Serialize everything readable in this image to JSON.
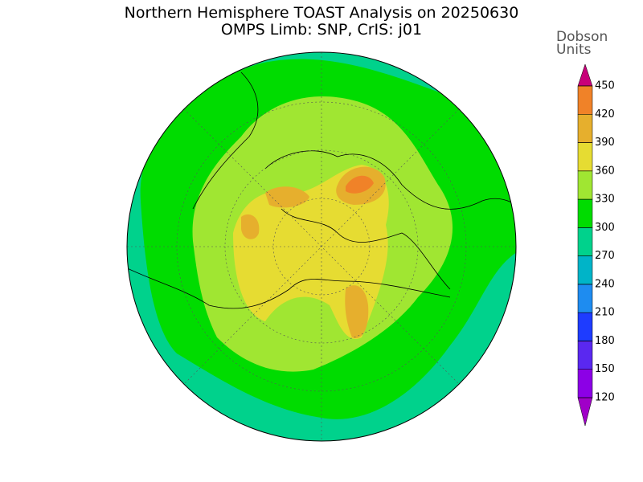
{
  "title": [
    "Northern Hemisphere TOAST Analysis on 20250630",
    "OMPS Limb: SNP, CrIS: j01"
  ],
  "colorbar": {
    "title": [
      "Dobson",
      "Units"
    ],
    "ticks": [
      120,
      150,
      180,
      210,
      240,
      270,
      300,
      330,
      360,
      390,
      420,
      450
    ],
    "colors": [
      "#a000c8",
      "#8c00e6",
      "#5a28f0",
      "#1e3cff",
      "#1e8cf0",
      "#00b4c8",
      "#00d28c",
      "#00dc00",
      "#a0e632",
      "#e6dc32",
      "#e6af2d",
      "#f08228",
      "#fa3c3c",
      "#c8007a"
    ]
  }
}
